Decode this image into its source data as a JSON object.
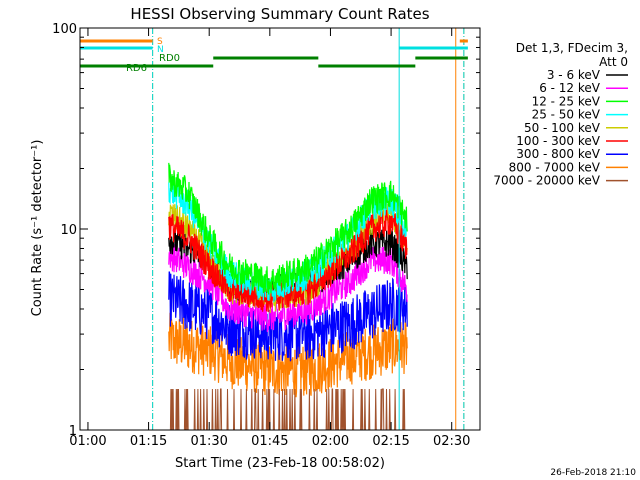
{
  "chart_data": {
    "type": "line",
    "title": "HESSI Observing Summary Count Rates",
    "xlabel": "Start Time (23-Feb-18 00:58:02)",
    "ylabel": "Count Rate (s⁻¹ detector⁻¹)",
    "y_scale": "log",
    "ylim": [
      1,
      100
    ],
    "xlim": [
      "00:58:02",
      "02:37:00"
    ],
    "x_ticks": [
      "01:00",
      "01:15",
      "01:30",
      "01:45",
      "02:00",
      "02:15",
      "02:30"
    ],
    "y_ticks": [
      "1",
      "10",
      "100"
    ],
    "grid": false,
    "legend_position": "right",
    "legend_header": [
      "Det 1,3, FDecim 3,",
      "Att 0"
    ],
    "footer_date": "26-Feb-2018 21:10",
    "series": [
      {
        "name": "3 - 6 keV",
        "color": "#000000",
        "x": [
          "01:20",
          "01:30",
          "01:35",
          "01:45",
          "01:55",
          "02:05",
          "02:10",
          "02:15",
          "02:19"
        ],
        "values": [
          9,
          7,
          5.2,
          5.0,
          5.3,
          7,
          8.5,
          8.5,
          6.5
        ]
      },
      {
        "name": "6 - 12 keV",
        "color": "#ff00ff",
        "x": [
          "01:20",
          "01:30",
          "01:35",
          "01:45",
          "01:55",
          "02:05",
          "02:10",
          "02:15",
          "02:19"
        ],
        "values": [
          7.5,
          5.5,
          4,
          3.6,
          4,
          5.5,
          7,
          7,
          5
        ]
      },
      {
        "name": "12 - 25 keV",
        "color": "#00ff00",
        "x": [
          "01:20",
          "01:25",
          "01:30",
          "01:35",
          "01:45",
          "01:55",
          "02:05",
          "02:10",
          "02:15",
          "02:19"
        ],
        "values": [
          18,
          15,
          9,
          6.5,
          5.5,
          6.5,
          10,
          14,
          15,
          11
        ]
      },
      {
        "name": "25 - 50 keV",
        "color": "#00ffff",
        "x": [
          "01:20",
          "01:25",
          "01:30",
          "01:35",
          "01:45",
          "01:55",
          "02:05",
          "02:10",
          "02:15",
          "02:19"
        ],
        "values": [
          16,
          13,
          8.5,
          6,
          5,
          6,
          9.5,
          13,
          14,
          10
        ]
      },
      {
        "name": "50 - 100 keV",
        "color": "#cccc00",
        "x": [
          "01:20",
          "01:25",
          "01:30",
          "01:35",
          "01:45",
          "01:55",
          "02:05",
          "02:10",
          "02:15",
          "02:19"
        ],
        "values": [
          12,
          10,
          7,
          5,
          4.5,
          5,
          8,
          11,
          12,
          8.5
        ]
      },
      {
        "name": "100 - 300 keV",
        "color": "#ff0000",
        "x": [
          "01:20",
          "01:25",
          "01:30",
          "01:35",
          "01:45",
          "01:55",
          "02:05",
          "02:10",
          "02:15",
          "02:19"
        ],
        "values": [
          10.5,
          9,
          6.5,
          5,
          4.5,
          5,
          7.5,
          10,
          11,
          8
        ]
      },
      {
        "name": "300 - 800 keV",
        "color": "#0000ff",
        "x": [
          "01:20",
          "01:30",
          "01:35",
          "01:45",
          "01:55",
          "02:05",
          "02:15",
          "02:19"
        ],
        "values": [
          4.5,
          3.8,
          3.2,
          3.0,
          3.0,
          3.4,
          4.2,
          4.2
        ]
      },
      {
        "name": "800 - 7000 keV",
        "color": "#ff8000",
        "x": [
          "01:20",
          "01:30",
          "01:35",
          "01:45",
          "01:55",
          "02:05",
          "02:15",
          "02:19"
        ],
        "values": [
          2.8,
          2.5,
          2.2,
          2.0,
          2.0,
          2.3,
          2.6,
          2.6
        ]
      },
      {
        "name": "7000 - 20000 keV",
        "color": "#a0522d",
        "x": [
          "01:20",
          "01:45",
          "02:19"
        ],
        "values": [
          1,
          1,
          1
        ]
      }
    ],
    "annotations": {
      "flags": [
        {
          "label": "S",
          "color": "#ff8000",
          "segments": [
            [
              "00:58:02",
              "01:16"
            ],
            [
              "02:32",
              "02:34"
            ]
          ]
        },
        {
          "label": "N",
          "color": "#00e0e0",
          "segments": [
            [
              "00:58:02",
              "01:16"
            ],
            [
              "02:17",
              "02:34"
            ]
          ]
        },
        {
          "label": "RD0",
          "color": "#008000",
          "segments": [
            [
              "01:31",
              "01:57"
            ],
            [
              "02:21",
              "02:34"
            ]
          ]
        },
        {
          "label": "RD6",
          "color": "#008000",
          "segments": [
            [
              "00:58:02",
              "01:31"
            ],
            [
              "01:57",
              "02:21"
            ]
          ]
        }
      ],
      "vertical_lines": [
        {
          "time": "00:58:02",
          "color": "#00e0e0",
          "style": "solid"
        },
        {
          "time": "01:16",
          "color": "#ff8000",
          "style": "dashdot"
        },
        {
          "time": "01:16",
          "color": "#00e0e0",
          "style": "dashdot"
        },
        {
          "time": "02:17",
          "color": "#00e0e0",
          "style": "solid"
        },
        {
          "time": "02:31",
          "color": "#ff8000",
          "style": "solid"
        },
        {
          "time": "02:33",
          "color": "#ff8000",
          "style": "dashdot"
        },
        {
          "time": "02:33",
          "color": "#00e0e0",
          "style": "dashdot"
        }
      ]
    }
  }
}
